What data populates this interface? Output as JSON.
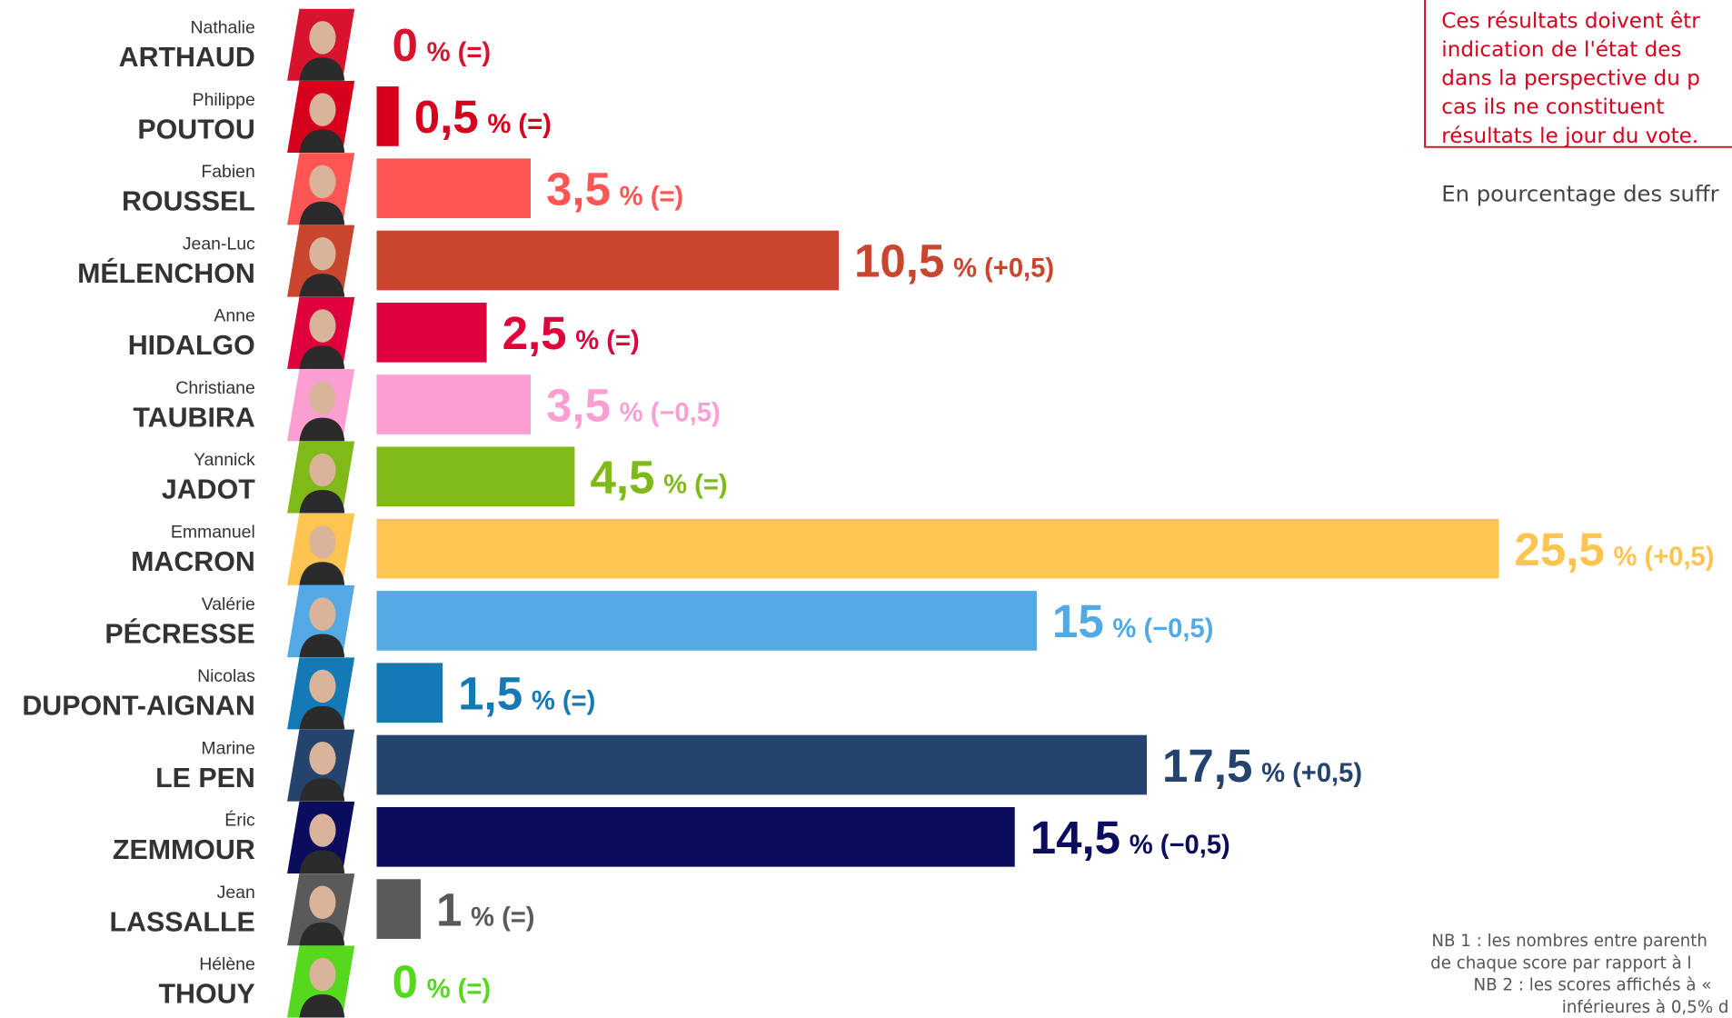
{
  "chart_data": {
    "type": "bar",
    "orientation": "horizontal",
    "first_names": [
      "Nathalie",
      "Philippe",
      "Fabien",
      "Jean-Luc",
      "Anne",
      "Christiane",
      "Yannick",
      "Emmanuel",
      "Valérie",
      "Nicolas",
      "Marine",
      "Éric",
      "Jean",
      "Hélène"
    ],
    "categories": [
      "ARTHAUD",
      "POUTOU",
      "ROUSSEL",
      "MÉLENCHON",
      "HIDALGO",
      "TAUBIRA",
      "JADOT",
      "MACRON",
      "PÉCRESSE",
      "DUPONT-AIGNAN",
      "LE PEN",
      "ZEMMOUR",
      "LASSALLE",
      "THOUY"
    ],
    "values": [
      0,
      0.5,
      3.5,
      10.5,
      2.5,
      3.5,
      4.5,
      25.5,
      15,
      1.5,
      17.5,
      14.5,
      1,
      0
    ],
    "value_labels": [
      "0",
      "0,5",
      "3,5",
      "10,5",
      "2,5",
      "3,5",
      "4,5",
      "25,5",
      "15",
      "1,5",
      "17,5",
      "14,5",
      "1",
      "0"
    ],
    "changes": [
      "% (=)",
      "% (=)",
      "% (=)",
      "% (+0,5)",
      "% (=)",
      "% (−0,5)",
      "% (=)",
      "% (+0,5)",
      "% (−0,5)",
      "% (=)",
      "% (+0,5)",
      "% (−0,5)",
      "% (=)",
      "% (=)"
    ],
    "colors": [
      "#d8132e",
      "#d6001c",
      "#ff5555",
      "#c9452e",
      "#e0003c",
      "#fb9fd3",
      "#7fba19",
      "#fdc44f",
      "#52a9e3",
      "#1579b5",
      "#24446e",
      "#0c0c5e",
      "#5a5a5a",
      "#55d81e"
    ],
    "warning": [
      "Ces résultats doivent êtr",
      "indication de l'état des",
      "dans la perspective du p",
      "cas ils ne constituent",
      "résultats le jour du vote."
    ],
    "subtitle": "En pourcentage des suffr",
    "notes": [
      "NB 1 : les nombres entre parenth",
      "de chaque score par rapport à l",
      "NB 2 : les scores affichés à «",
      "inférieures à 0,5% d"
    ]
  }
}
